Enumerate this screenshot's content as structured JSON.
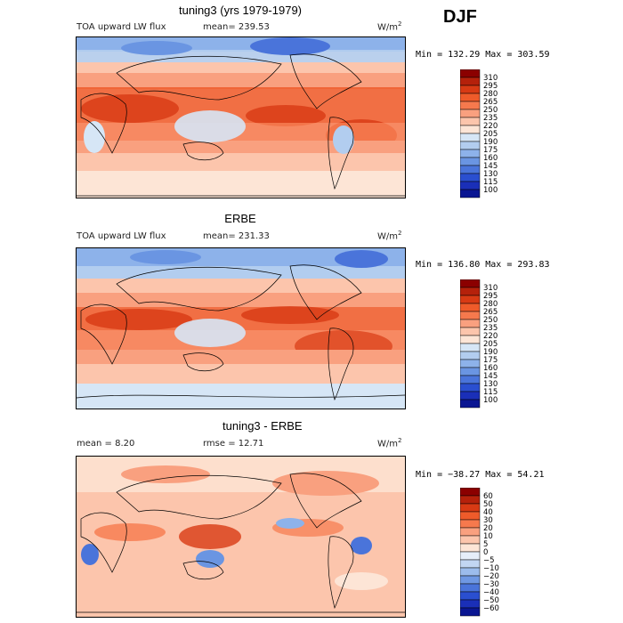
{
  "season": "DJF",
  "panels": [
    {
      "id": "model",
      "title": "tuning3 (yrs 1979-1979)",
      "left_label": "TOA upward LW flux",
      "center_label": "mean=  239.53",
      "units": "W/m",
      "units_sup": "2",
      "minmax": "Min = 132.29  Max = 303.59",
      "colorbar": {
        "labels": [
          "310",
          "295",
          "280",
          "265",
          "250",
          "235",
          "220",
          "205",
          "190",
          "175",
          "160",
          "145",
          "130",
          "115",
          "100"
        ],
        "colors": [
          "#8b0000",
          "#b5210b",
          "#d83a14",
          "#ef5b2a",
          "#f6794d",
          "#f9a07f",
          "#fcc5ac",
          "#fde5d6",
          "#d6e6f6",
          "#b2cdef",
          "#8db2ea",
          "#6a95e2",
          "#4a74da",
          "#2a4fd0",
          "#1a2fb8",
          "#0a1692"
        ]
      },
      "map_top": 41,
      "cbar_top": 78
    },
    {
      "id": "obs",
      "title": "ERBE",
      "left_label": "TOA upward LW flux",
      "center_label": "mean=  231.33",
      "units": "W/m",
      "units_sup": "2",
      "minmax": "Min = 136.80  Max = 293.83",
      "colorbar": {
        "labels": [
          "310",
          "295",
          "280",
          "265",
          "250",
          "235",
          "220",
          "205",
          "190",
          "175",
          "160",
          "145",
          "130",
          "115",
          "100"
        ],
        "colors": [
          "#8b0000",
          "#b5210b",
          "#d83a14",
          "#ef5b2a",
          "#f6794d",
          "#f9a07f",
          "#fcc5ac",
          "#fde5d6",
          "#d6e6f6",
          "#b2cdef",
          "#8db2ea",
          "#6a95e2",
          "#4a74da",
          "#2a4fd0",
          "#1a2fb8",
          "#0a1692"
        ]
      },
      "map_top": 278,
      "cbar_top": 314
    },
    {
      "id": "diff",
      "title": "tuning3 - ERBE",
      "left_label": "mean =    8.20",
      "center_label": "rmse =   12.71",
      "units": "W/m",
      "units_sup": "2",
      "minmax": "Min = −38.27  Max =   54.21",
      "colorbar": {
        "labels": [
          "60",
          "50",
          "40",
          "30",
          "20",
          "10",
          "5",
          "0",
          "−5",
          "−10",
          "−20",
          "−30",
          "−40",
          "−50",
          "−60"
        ],
        "colors": [
          "#8b0000",
          "#b5210b",
          "#d83a14",
          "#ef5b2a",
          "#f6794d",
          "#f9a07f",
          "#fcc5ac",
          "#fde5d6",
          "#e6eef9",
          "#c2d6f2",
          "#9cbcec",
          "#6f98e3",
          "#4a74da",
          "#2a4fd0",
          "#1a2fb8",
          "#0a1692"
        ]
      },
      "map_top": 512,
      "cbar_top": 548
    }
  ]
}
